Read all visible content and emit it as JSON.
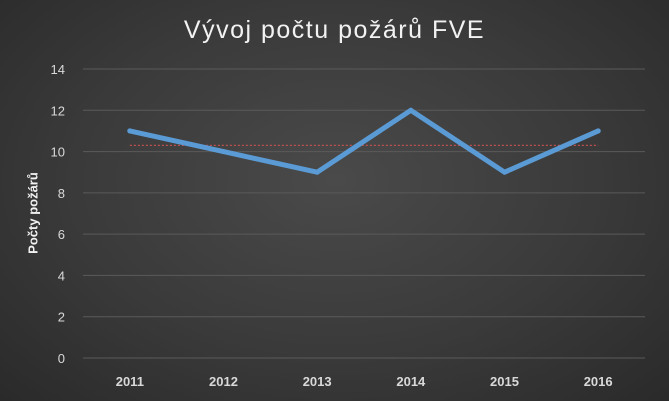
{
  "chart_data": {
    "type": "line",
    "title": "Vývoj počtu požárů FVE",
    "xlabel": "",
    "ylabel": "Počty požárů",
    "categories": [
      "2011",
      "2012",
      "2013",
      "2014",
      "2015",
      "2016"
    ],
    "series": [
      {
        "values": [
          11,
          10,
          9,
          12,
          9,
          11
        ],
        "color": "#5b9bd5"
      }
    ],
    "trendline": {
      "values": [
        10.3,
        10.3
      ],
      "color": "#c0504d",
      "style": "dotted"
    },
    "ylim": [
      0,
      14
    ],
    "yticks": [
      0,
      2,
      4,
      6,
      8,
      10,
      12,
      14
    ],
    "grid": true,
    "legend": "none",
    "colors": {
      "background": "#3a3a3a",
      "grid": "#5a5a5a",
      "text": "#d9d9d9"
    }
  }
}
